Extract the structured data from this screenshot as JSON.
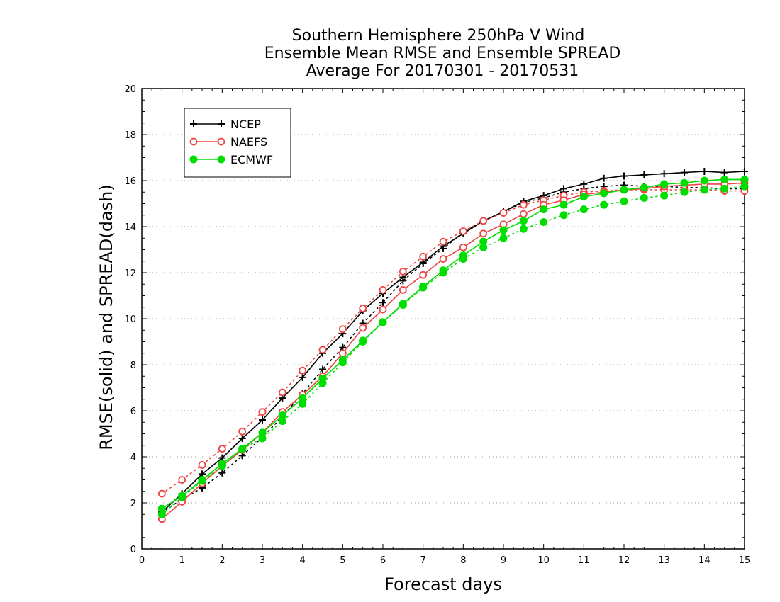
{
  "chart_data": {
    "type": "line",
    "title_lines": [
      "Southern Hemisphere 250hPa V Wind",
      "Ensemble Mean RMSE and Ensemble SPREAD",
      "Average For 20170301 - 20170531"
    ],
    "xlabel": "Forecast days",
    "ylabel": "RMSE(solid) and SPREAD(dash)",
    "xlim": [
      0,
      15
    ],
    "ylim": [
      0,
      20
    ],
    "xticks": [
      "0",
      "1",
      "2",
      "3",
      "4",
      "5",
      "6",
      "7",
      "8",
      "9",
      "10",
      "11",
      "12",
      "13",
      "14",
      "15"
    ],
    "yticks": [
      "0",
      "2",
      "4",
      "6",
      "8",
      "10",
      "12",
      "14",
      "16",
      "18",
      "20"
    ],
    "grid": "horizontal dotted",
    "legend_position": "top-left",
    "x": [
      0.5,
      1,
      1.5,
      2,
      2.5,
      3,
      3.5,
      4,
      4.5,
      5,
      5.5,
      6,
      6.5,
      7,
      7.5,
      8,
      8.5,
      9,
      9.5,
      10,
      10.5,
      11,
      11.5,
      12,
      12.5,
      13,
      13.5,
      14,
      14.5,
      15
    ],
    "series": [
      {
        "name": "NCEP",
        "color": "#000000",
        "marker": "plus",
        "rmse": [
          1.6,
          2.4,
          3.25,
          3.95,
          4.8,
          5.6,
          6.55,
          7.45,
          8.5,
          9.35,
          10.35,
          11.1,
          11.8,
          12.45,
          13.15,
          13.7,
          14.25,
          14.65,
          15.1,
          15.35,
          15.65,
          15.85,
          16.1,
          16.2,
          16.25,
          16.3,
          16.35,
          16.4,
          16.35,
          16.4
        ],
        "spread": [
          1.6,
          2.15,
          2.65,
          3.3,
          4.05,
          4.85,
          5.75,
          6.75,
          7.8,
          8.75,
          9.8,
          10.7,
          11.65,
          12.4,
          13.05,
          13.75,
          14.25,
          14.65,
          15.05,
          15.25,
          15.5,
          15.65,
          15.75,
          15.8,
          15.75,
          15.75,
          15.7,
          15.7,
          15.65,
          15.65
        ]
      },
      {
        "name": "NAEFS",
        "color": "#ee4444",
        "marker": "circle-open",
        "rmse": [
          1.3,
          2.05,
          2.85,
          3.6,
          4.3,
          5.05,
          5.95,
          6.7,
          7.5,
          8.5,
          9.6,
          10.4,
          11.25,
          11.9,
          12.6,
          13.1,
          13.7,
          14.1,
          14.55,
          14.95,
          15.15,
          15.4,
          15.5,
          15.6,
          15.65,
          15.75,
          15.8,
          15.85,
          15.85,
          15.9
        ],
        "spread": [
          2.4,
          3.0,
          3.65,
          4.35,
          5.1,
          5.95,
          6.8,
          7.75,
          8.65,
          9.55,
          10.45,
          11.25,
          12.05,
          12.7,
          13.35,
          13.8,
          14.25,
          14.6,
          14.95,
          15.15,
          15.35,
          15.5,
          15.55,
          15.6,
          15.6,
          15.6,
          15.6,
          15.6,
          15.55,
          15.55
        ]
      },
      {
        "name": "ECMWF",
        "color": "#00dd00",
        "marker": "circle-filled",
        "rmse": [
          1.75,
          2.3,
          3.0,
          3.7,
          4.35,
          5.05,
          5.8,
          6.55,
          7.4,
          8.2,
          9.05,
          9.85,
          10.65,
          11.4,
          12.1,
          12.75,
          13.35,
          13.85,
          14.25,
          14.75,
          14.95,
          15.3,
          15.45,
          15.6,
          15.7,
          15.85,
          15.9,
          16.0,
          16.05,
          16.05
        ],
        "spread": [
          1.5,
          2.25,
          2.95,
          3.6,
          4.35,
          4.8,
          5.55,
          6.3,
          7.2,
          8.1,
          9.0,
          9.85,
          10.6,
          11.35,
          12.0,
          12.6,
          13.1,
          13.5,
          13.9,
          14.2,
          14.5,
          14.75,
          14.95,
          15.1,
          15.25,
          15.35,
          15.5,
          15.6,
          15.65,
          15.75
        ]
      }
    ]
  }
}
